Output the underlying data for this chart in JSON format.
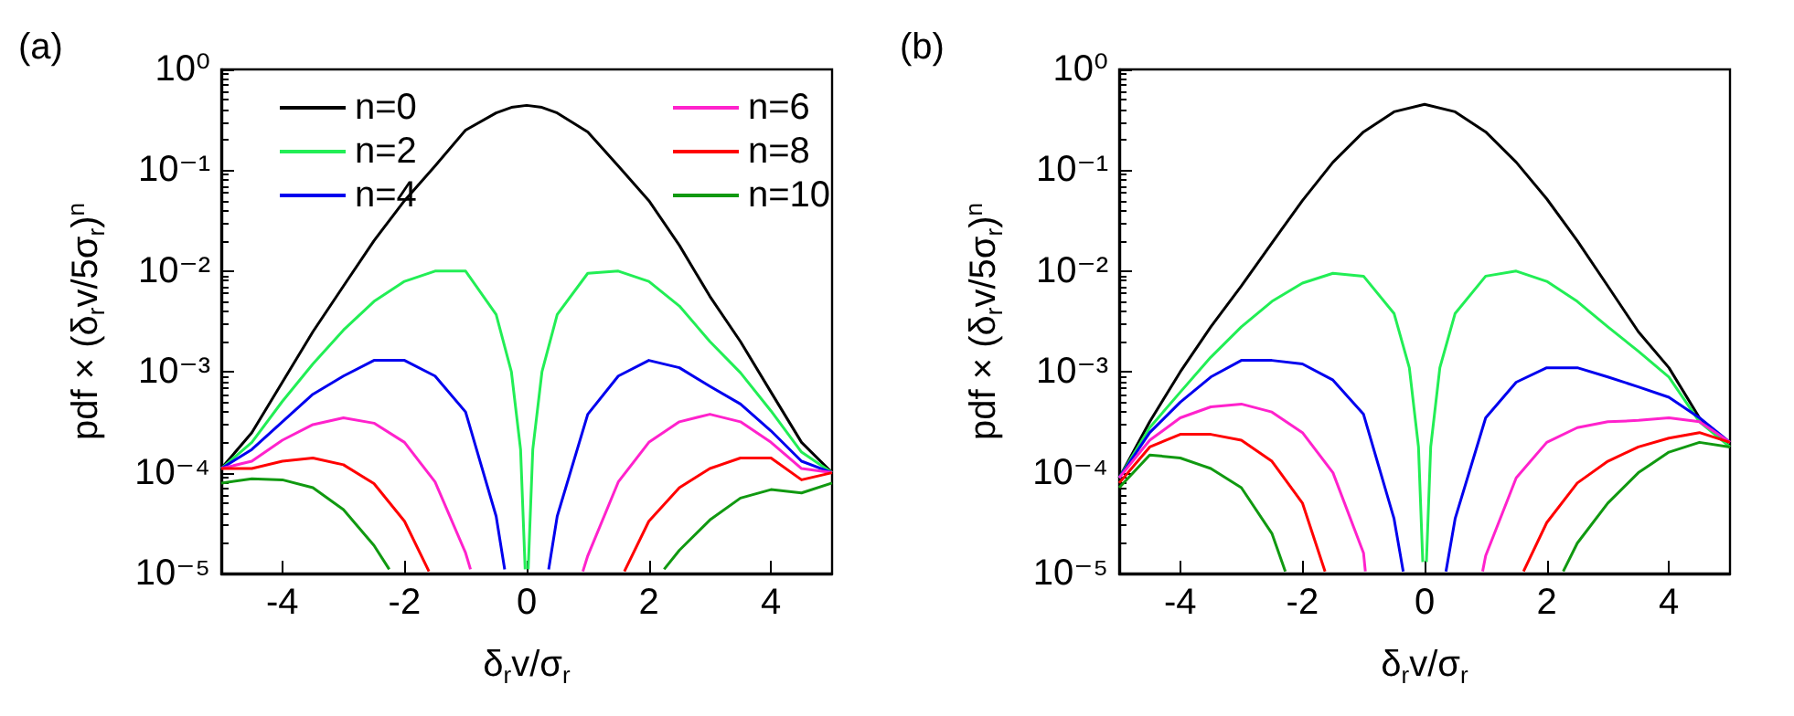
{
  "chart_data": [
    {
      "type": "line",
      "annotations": [
        "(a)"
      ],
      "xlabel": "δ$_{r}$v/σ$_{r}$",
      "ylabel": "pdf × (δ$_{r}$v/5σ$_{r}$)$^{n}$",
      "log": "y",
      "grid": false,
      "legend": "top",
      "marker": "none",
      "xlim": [
        -5,
        5
      ],
      "xticks": [
        -4,
        -2,
        0,
        2,
        4
      ],
      "ylim": [
        1e-05,
        1
      ],
      "yticks": [
        {
          "value": 1e-05,
          "label": "10⁻⁵"
        },
        {
          "value": 0.0001,
          "label": "10⁻⁴"
        },
        {
          "value": 0.001,
          "label": "10⁻³"
        },
        {
          "value": 0.01,
          "label": "10⁻²"
        },
        {
          "value": 0.1,
          "label": "10⁻¹"
        },
        {
          "value": 1,
          "label": "10⁰"
        }
      ],
      "series": [
        {
          "name": "n=0",
          "color": "#000000",
          "x": [
            -5,
            -4.5,
            -4,
            -3.5,
            -3,
            -2.5,
            -2,
            -1.5,
            -1,
            -0.5,
            -0.25,
            0,
            0.25,
            0.5,
            1,
            1.5,
            2,
            2.5,
            3,
            3.5,
            4,
            4.5,
            5
          ],
          "values": [
            0.00011,
            0.00025,
            0.00079,
            0.0025,
            0.0071,
            0.02,
            0.05,
            0.11,
            0.25,
            0.37,
            0.42,
            0.44,
            0.42,
            0.37,
            0.24,
            0.11,
            0.05,
            0.018,
            0.0056,
            0.002,
            0.00063,
            0.0002,
            0.0001
          ]
        },
        {
          "name": "n=2",
          "color": "#22ee55",
          "x": [
            -5,
            -4.5,
            -4,
            -3.5,
            -3,
            -2.5,
            -2,
            -1.5,
            -1,
            -0.5,
            -0.25,
            -0.1,
            -0.025,
            0,
            0.025,
            0.1,
            0.25,
            0.5,
            1,
            1.5,
            2,
            2.5,
            3,
            3.5,
            4,
            4.5,
            5
          ],
          "values": [
            0.00011,
            0.0002,
            0.00051,
            0.0012,
            0.0026,
            0.005,
            0.0079,
            0.01,
            0.01,
            0.0037,
            0.001,
            0.00017,
            1.1e-05,
            null,
            1.1e-05,
            0.00017,
            0.001,
            0.0037,
            0.0095,
            0.01,
            0.0079,
            0.0045,
            0.002,
            0.00098,
            0.00041,
            0.00016,
            0.0001
          ]
        },
        {
          "name": "n=4",
          "color": "#0000ee",
          "x": [
            -5,
            -4.5,
            -4,
            -3.5,
            -3,
            -2.5,
            -2,
            -1.5,
            -1,
            -0.5,
            -0.36,
            0,
            0.36,
            0.5,
            1,
            1.5,
            2,
            2.5,
            3,
            3.5,
            4,
            4.5,
            5
          ],
          "values": [
            0.00011,
            0.00017,
            0.00032,
            0.0006,
            0.00091,
            0.0013,
            0.0013,
            0.00091,
            0.0004,
            3.7e-05,
            1.1e-05,
            null,
            1.1e-05,
            3.7e-05,
            0.00038,
            0.00091,
            0.0013,
            0.0011,
            0.00072,
            0.00048,
            0.00026,
            0.00013,
            0.0001
          ]
        },
        {
          "name": "n=6",
          "color": "#ff22cc",
          "x": [
            -5,
            -4.5,
            -4,
            -3.5,
            -3,
            -2.5,
            -2,
            -1.5,
            -1,
            -0.92,
            0,
            0.92,
            1,
            1.5,
            2,
            2.5,
            3,
            3.5,
            4,
            4.5,
            5
          ],
          "values": [
            0.00011,
            0.00013,
            0.00021,
            0.0003,
            0.00035,
            0.00031,
            0.0002,
            8.1e-05,
            1.6e-05,
            1.1e-05,
            null,
            1.05e-05,
            1.5e-05,
            8.1e-05,
            0.0002,
            0.00032,
            0.00038,
            0.00032,
            0.0002,
            0.00011,
            0.0001
          ]
        },
        {
          "name": "n=8",
          "color": "#ff0000",
          "x": [
            -5,
            -4.5,
            -4,
            -3.5,
            -3,
            -2.5,
            -2,
            -1.6,
            0,
            1.6,
            2,
            2.5,
            3,
            3.5,
            4,
            4.5,
            5
          ],
          "values": [
            0.00011,
            0.00011,
            0.00013,
            0.00014,
            0.00012,
            7.8e-05,
            3.3e-05,
            1.05e-05,
            null,
            1.05e-05,
            3.3e-05,
            7.1e-05,
            0.00011,
            0.00014,
            0.00014,
            8.5e-05,
            0.0001
          ]
        },
        {
          "name": "n=10",
          "color": "#119911",
          "x": [
            -5,
            -4.5,
            -4,
            -3.5,
            -3,
            -2.5,
            -2.25,
            0,
            2.25,
            2.5,
            3,
            3.5,
            4,
            4.5,
            5
          ],
          "values": [
            7.9e-05,
            8.7e-05,
            8.5e-05,
            7.1e-05,
            4.3e-05,
            1.9e-05,
            1.1e-05,
            null,
            1.1e-05,
            1.7e-05,
            3.4e-05,
            5.6e-05,
            6.8e-05,
            6.3e-05,
            7.9e-05
          ]
        }
      ]
    },
    {
      "type": "line",
      "annotations": [
        "(b)"
      ],
      "xlabel": "δ$_{r}$v/σ$_{r}$",
      "ylabel": "pdf × (δ$_{r}$v/5σ$_{r}$)$^{n}$",
      "log": "y",
      "grid": false,
      "marker": "none",
      "xlim": [
        -5,
        5
      ],
      "xticks": [
        -4,
        -2,
        0,
        2,
        4
      ],
      "ylim": [
        1e-05,
        1
      ],
      "yticks": [
        {
          "value": 1e-05,
          "label": "10⁻⁵"
        },
        {
          "value": 0.0001,
          "label": "10⁻⁴"
        },
        {
          "value": 0.001,
          "label": "10⁻³"
        },
        {
          "value": 0.01,
          "label": "10⁻²"
        },
        {
          "value": 0.1,
          "label": "10⁻¹"
        },
        {
          "value": 1,
          "label": "10⁰"
        }
      ],
      "series": [
        {
          "color": "#000000",
          "x": [
            -5,
            -4.5,
            -4,
            -3.5,
            -3,
            -2.5,
            -2,
            -1.5,
            -1,
            -0.5,
            0,
            0.5,
            1,
            1.5,
            2,
            2.5,
            3,
            3.5,
            4,
            4.5,
            5
          ],
          "values": [
            8.9e-05,
            0.00032,
            0.001,
            0.0028,
            0.0071,
            0.019,
            0.05,
            0.12,
            0.24,
            0.38,
            0.45,
            0.38,
            0.24,
            0.12,
            0.052,
            0.02,
            0.0071,
            0.0025,
            0.0011,
            0.00035,
            0.00018
          ]
        },
        {
          "color": "#22ee55",
          "x": [
            -5,
            -4.5,
            -4,
            -3.5,
            -3,
            -2.5,
            -2,
            -1.5,
            -1,
            -0.5,
            -0.25,
            -0.1,
            -0.03,
            0,
            0.03,
            0.1,
            0.25,
            0.5,
            1,
            1.5,
            2,
            2.5,
            3,
            3.5,
            4,
            4.5,
            5
          ],
          "values": [
            8.9e-05,
            0.00028,
            0.00063,
            0.0014,
            0.0028,
            0.005,
            0.0076,
            0.0095,
            0.0089,
            0.0038,
            0.0011,
            0.00018,
            1.3e-05,
            null,
            1.3e-05,
            0.00018,
            0.0011,
            0.0038,
            0.0089,
            0.01,
            0.0079,
            0.005,
            0.0028,
            0.0016,
            0.00089,
            0.00032,
            0.00018
          ]
        },
        {
          "color": "#0000ee",
          "x": [
            -5,
            -4.5,
            -4,
            -3.5,
            -3,
            -2.5,
            -2,
            -1.5,
            -1,
            -0.5,
            -0.35,
            0,
            0.35,
            0.5,
            1,
            1.5,
            2,
            2.5,
            3,
            3.5,
            4,
            4.5,
            5
          ],
          "values": [
            8.9e-05,
            0.00025,
            0.0005,
            0.00089,
            0.0013,
            0.0013,
            0.0012,
            0.00083,
            0.00038,
            3.5e-05,
            1.05e-05,
            null,
            1.05e-05,
            3.5e-05,
            0.00035,
            0.00079,
            0.0011,
            0.0011,
            0.00089,
            0.00071,
            0.00056,
            0.00035,
            0.0002
          ]
        },
        {
          "color": "#ff22cc",
          "x": [
            -5,
            -4.5,
            -4,
            -3.5,
            -3,
            -2.5,
            -2,
            -1.5,
            -1,
            -0.97,
            0,
            0.95,
            1,
            1.5,
            2,
            2.5,
            3,
            3.5,
            4,
            4.5,
            5
          ],
          "values": [
            8.9e-05,
            0.00021,
            0.00035,
            0.00045,
            0.00048,
            0.0004,
            0.00025,
            0.0001,
            1.6e-05,
            1.05e-05,
            null,
            1.05e-05,
            1.5e-05,
            8.9e-05,
            0.0002,
            0.00028,
            0.00032,
            0.00033,
            0.00035,
            0.00032,
            0.0002
          ]
        },
        {
          "color": "#ff0000",
          "x": [
            -5,
            -4.5,
            -4,
            -3.5,
            -3,
            -2.5,
            -2,
            -1.63,
            0,
            1.62,
            2,
            2.5,
            3,
            3.5,
            4,
            4.5,
            5
          ],
          "values": [
            7.9e-05,
            0.00018,
            0.00024,
            0.00024,
            0.00021,
            0.00013,
            5e-05,
            1.05e-05,
            null,
            1.05e-05,
            3.2e-05,
            7.9e-05,
            0.00013,
            0.00018,
            0.00022,
            0.00025,
            0.0002
          ]
        },
        {
          "color": "#119911",
          "x": [
            -5,
            -4.5,
            -4,
            -3.5,
            -3,
            -2.5,
            -2.28,
            0,
            2.27,
            2.5,
            3,
            3.5,
            4,
            4.5,
            5
          ],
          "values": [
            7.1e-05,
            0.00015,
            0.00014,
            0.00011,
            7.1e-05,
            2.5e-05,
            1.05e-05,
            null,
            1.05e-05,
            2e-05,
            5e-05,
            0.0001,
            0.00016,
            0.0002,
            0.00018
          ]
        }
      ]
    }
  ]
}
